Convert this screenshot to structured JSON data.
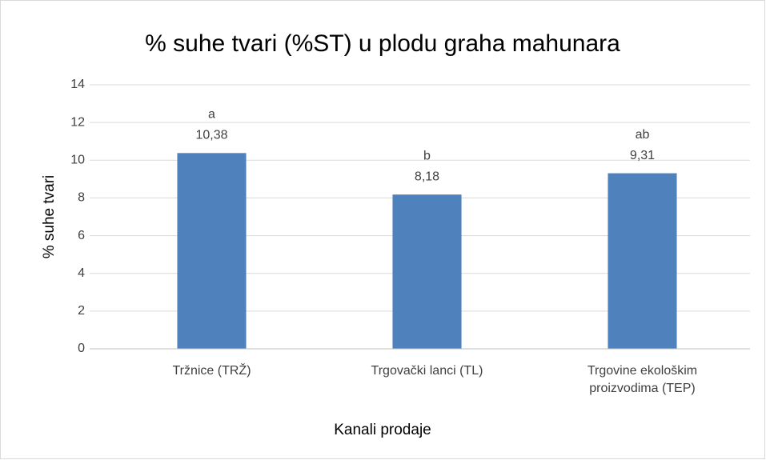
{
  "chart_data": {
    "type": "bar",
    "title": "% suhe tvari (%ST) u plodu graha mahunara",
    "categories": [
      "Tržnice (TRŽ)",
      "Trgovački lanci (TL)",
      "Trgovine ekološkim proizvodima (TEP)"
    ],
    "values": [
      10.38,
      8.18,
      9.31
    ],
    "value_labels": [
      "10,38",
      "8,18",
      "9,31"
    ],
    "annotations": [
      "a",
      "b",
      "ab"
    ],
    "color": "#4f81bd",
    "ylim": [
      0,
      14
    ],
    "yticks": [
      0,
      2,
      4,
      6,
      8,
      10,
      12,
      14
    ],
    "grid": true,
    "xlabel": "Kanali prodaje",
    "ylabel": "% suhe tvari"
  }
}
